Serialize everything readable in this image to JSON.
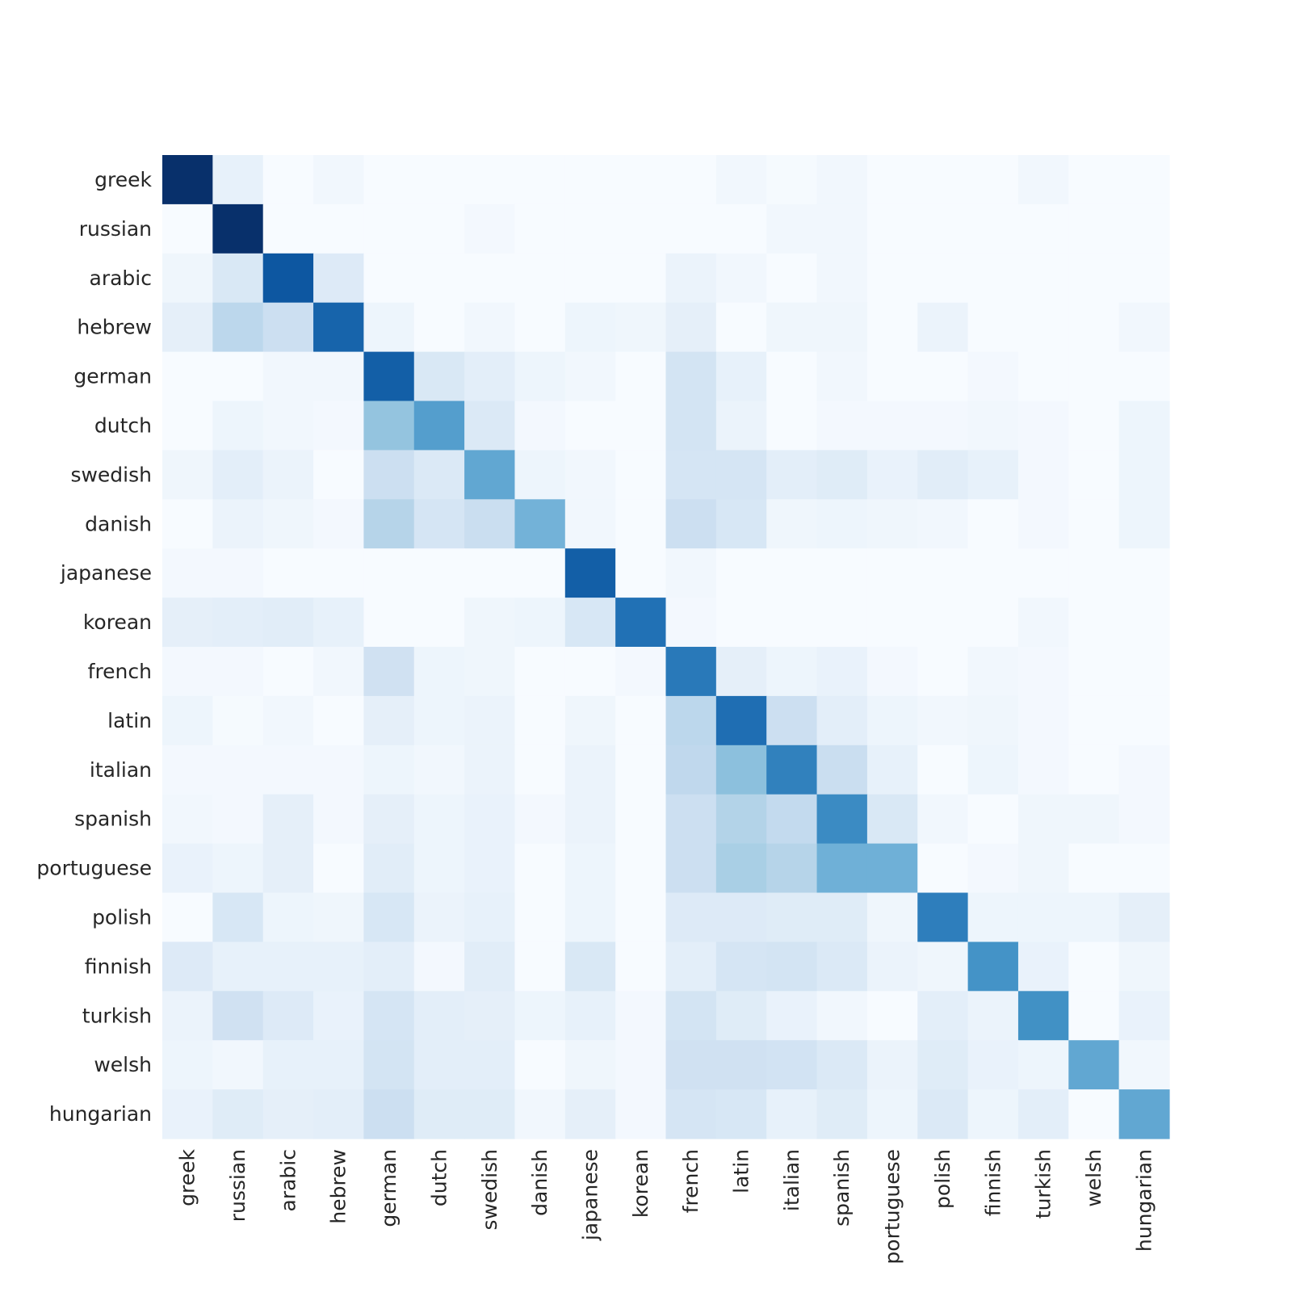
{
  "chart_data": {
    "type": "heatmap",
    "title": "",
    "xlabel": "",
    "ylabel": "",
    "grid": false,
    "legend": "none",
    "colormap": "Blues",
    "value_range": [
      0,
      1
    ],
    "row_labels": [
      "greek",
      "russian",
      "arabic",
      "hebrew",
      "german",
      "dutch",
      "swedish",
      "danish",
      "japanese",
      "korean",
      "french",
      "latin",
      "italian",
      "spanish",
      "portuguese",
      "polish",
      "finnish",
      "turkish",
      "welsh",
      "hungarian"
    ],
    "col_labels": [
      "greek",
      "russian",
      "arabic",
      "hebrew",
      "german",
      "dutch",
      "swedish",
      "danish",
      "japanese",
      "korean",
      "french",
      "latin",
      "italian",
      "spanish",
      "portuguese",
      "polish",
      "finnish",
      "turkish",
      "welsh",
      "hungarian"
    ],
    "values": [
      [
        1.0,
        0.08,
        0.0,
        0.03,
        0.0,
        0.0,
        0.0,
        0.0,
        0.0,
        0.0,
        0.0,
        0.03,
        0.01,
        0.03,
        0.0,
        0.0,
        0.0,
        0.03,
        0.0,
        0.0
      ],
      [
        0.0,
        1.0,
        0.0,
        0.0,
        0.0,
        0.0,
        0.02,
        0.0,
        0.0,
        0.0,
        0.0,
        0.0,
        0.03,
        0.03,
        0.0,
        0.0,
        0.0,
        0.0,
        0.0,
        0.0
      ],
      [
        0.04,
        0.15,
        0.85,
        0.13,
        0.0,
        0.0,
        0.0,
        0.0,
        0.0,
        0.0,
        0.06,
        0.03,
        0.0,
        0.03,
        0.0,
        0.0,
        0.0,
        0.0,
        0.0,
        0.0
      ],
      [
        0.09,
        0.28,
        0.22,
        0.8,
        0.05,
        0.0,
        0.03,
        0.0,
        0.05,
        0.04,
        0.09,
        0.0,
        0.04,
        0.04,
        0.0,
        0.06,
        0.0,
        0.0,
        0.0,
        0.03
      ],
      [
        0.0,
        0.0,
        0.03,
        0.03,
        0.82,
        0.15,
        0.1,
        0.05,
        0.03,
        0.0,
        0.18,
        0.08,
        0.0,
        0.03,
        0.0,
        0.0,
        0.02,
        0.0,
        0.0,
        0.0
      ],
      [
        0.0,
        0.05,
        0.03,
        0.02,
        0.4,
        0.57,
        0.14,
        0.02,
        0.0,
        0.0,
        0.18,
        0.06,
        0.0,
        0.02,
        0.02,
        0.02,
        0.03,
        0.02,
        0.0,
        0.05
      ],
      [
        0.04,
        0.1,
        0.06,
        0.0,
        0.22,
        0.14,
        0.53,
        0.05,
        0.03,
        0.0,
        0.17,
        0.17,
        0.1,
        0.12,
        0.07,
        0.11,
        0.08,
        0.02,
        0.0,
        0.05
      ],
      [
        0.0,
        0.06,
        0.04,
        0.02,
        0.3,
        0.17,
        0.23,
        0.48,
        0.03,
        0.0,
        0.22,
        0.16,
        0.04,
        0.05,
        0.04,
        0.03,
        0.0,
        0.02,
        0.0,
        0.05
      ],
      [
        0.02,
        0.02,
        0.0,
        0.0,
        0.0,
        0.0,
        0.0,
        0.0,
        0.82,
        0.0,
        0.03,
        0.0,
        0.0,
        0.0,
        0.0,
        0.0,
        0.0,
        0.0,
        0.0,
        0.0
      ],
      [
        0.09,
        0.1,
        0.11,
        0.08,
        0.0,
        0.0,
        0.04,
        0.05,
        0.16,
        0.75,
        0.02,
        0.0,
        0.0,
        0.0,
        0.0,
        0.0,
        0.0,
        0.03,
        0.0,
        0.0
      ],
      [
        0.02,
        0.02,
        0.0,
        0.03,
        0.2,
        0.05,
        0.04,
        0.0,
        0.0,
        0.02,
        0.72,
        0.09,
        0.05,
        0.07,
        0.02,
        0.0,
        0.03,
        0.02,
        0.0,
        0.0
      ],
      [
        0.05,
        0.01,
        0.03,
        0.0,
        0.09,
        0.05,
        0.06,
        0.0,
        0.04,
        0.0,
        0.28,
        0.76,
        0.22,
        0.1,
        0.05,
        0.03,
        0.04,
        0.02,
        0.0,
        0.0
      ],
      [
        0.02,
        0.02,
        0.02,
        0.02,
        0.05,
        0.03,
        0.06,
        0.0,
        0.06,
        0.0,
        0.27,
        0.42,
        0.69,
        0.23,
        0.08,
        0.0,
        0.05,
        0.02,
        0.0,
        0.02
      ],
      [
        0.03,
        0.02,
        0.09,
        0.02,
        0.09,
        0.05,
        0.07,
        0.02,
        0.06,
        0.0,
        0.22,
        0.31,
        0.26,
        0.65,
        0.15,
        0.03,
        0.0,
        0.04,
        0.04,
        0.02
      ],
      [
        0.07,
        0.05,
        0.09,
        0.0,
        0.11,
        0.05,
        0.07,
        0.0,
        0.05,
        0.0,
        0.22,
        0.34,
        0.3,
        0.49,
        0.49,
        0.0,
        0.02,
        0.04,
        0.0,
        0.0
      ],
      [
        0.0,
        0.16,
        0.05,
        0.04,
        0.16,
        0.06,
        0.08,
        0.0,
        0.05,
        0.0,
        0.13,
        0.13,
        0.12,
        0.12,
        0.04,
        0.7,
        0.05,
        0.05,
        0.05,
        0.09
      ],
      [
        0.13,
        0.08,
        0.08,
        0.08,
        0.1,
        0.02,
        0.11,
        0.0,
        0.15,
        0.0,
        0.1,
        0.17,
        0.18,
        0.14,
        0.06,
        0.04,
        0.62,
        0.07,
        0.0,
        0.04
      ],
      [
        0.06,
        0.2,
        0.13,
        0.07,
        0.17,
        0.1,
        0.09,
        0.05,
        0.08,
        0.02,
        0.18,
        0.12,
        0.07,
        0.03,
        0.0,
        0.1,
        0.06,
        0.63,
        0.0,
        0.07
      ],
      [
        0.05,
        0.03,
        0.08,
        0.08,
        0.18,
        0.1,
        0.1,
        0.0,
        0.04,
        0.02,
        0.2,
        0.2,
        0.19,
        0.14,
        0.06,
        0.12,
        0.07,
        0.05,
        0.53,
        0.03
      ],
      [
        0.07,
        0.12,
        0.09,
        0.1,
        0.22,
        0.12,
        0.12,
        0.03,
        0.09,
        0.02,
        0.17,
        0.16,
        0.08,
        0.12,
        0.05,
        0.14,
        0.05,
        0.1,
        0.0,
        0.53
      ]
    ]
  }
}
